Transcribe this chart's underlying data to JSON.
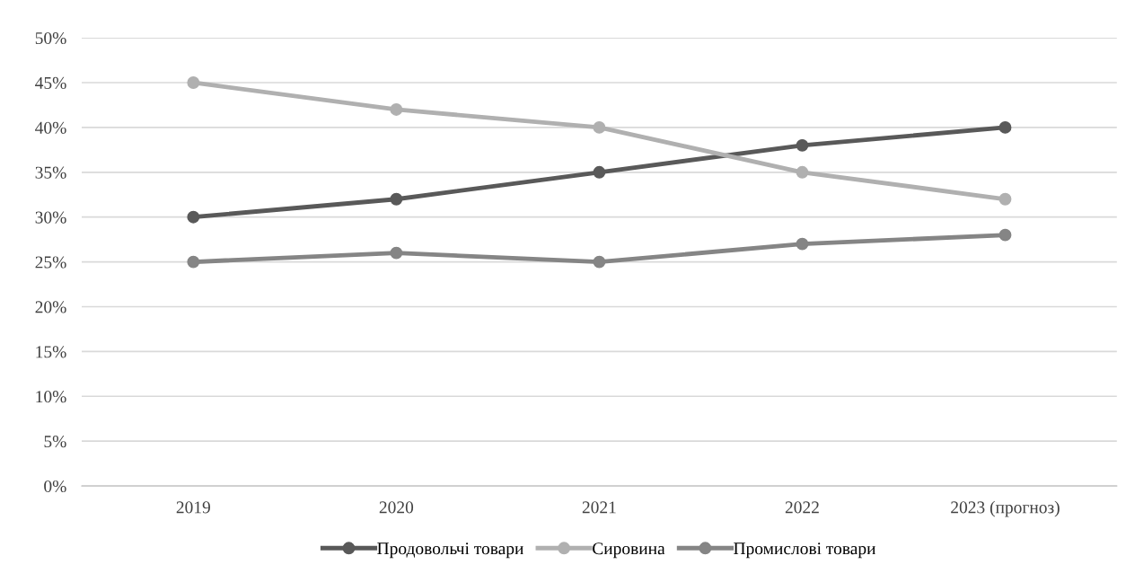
{
  "chart_data": {
    "type": "line",
    "categories": [
      "2019",
      "2020",
      "2021",
      "2022",
      "2023 (прогноз)"
    ],
    "series": [
      {
        "name": "Продовольчі товари",
        "color": "#595959",
        "values": [
          30,
          32,
          35,
          38,
          40
        ]
      },
      {
        "name": "Сировина",
        "color": "#b0b0b0",
        "values": [
          45,
          42,
          40,
          35,
          32
        ]
      },
      {
        "name": "Промислові товари",
        "color": "#858585",
        "values": [
          25,
          26,
          25,
          27,
          28
        ]
      }
    ],
    "ylim": [
      0,
      50
    ],
    "yticks": [
      {
        "value": 0,
        "label": "0%"
      },
      {
        "value": 5,
        "label": "5%"
      },
      {
        "value": 10,
        "label": "10%"
      },
      {
        "value": 15,
        "label": "15%"
      },
      {
        "value": 20,
        "label": "20%"
      },
      {
        "value": 25,
        "label": "25%"
      },
      {
        "value": 30,
        "label": "30%"
      },
      {
        "value": 35,
        "label": "35%"
      },
      {
        "value": 40,
        "label": "40%"
      },
      {
        "value": 45,
        "label": "45%"
      },
      {
        "value": 50,
        "label": "50%"
      }
    ],
    "grid": "y",
    "legend": "bottom",
    "marker": "circle",
    "line_style": "solid"
  }
}
